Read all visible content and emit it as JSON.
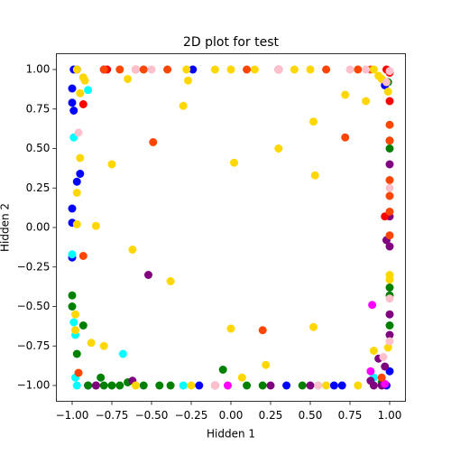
{
  "chart_data": {
    "type": "scatter",
    "title": "2D plot for test",
    "x_label": "Hidden 1",
    "y_label": "Hidden 2",
    "xlim": [
      -1.1,
      1.1
    ],
    "ylim": [
      -1.1,
      1.1
    ],
    "xticks": [
      {
        "value": -1,
        "label": "−1.00"
      },
      {
        "value": -0.75,
        "label": "−0.75"
      },
      {
        "value": -0.5,
        "label": "−0.50"
      },
      {
        "value": -0.25,
        "label": "−0.25"
      },
      {
        "value": 0,
        "label": "0.00"
      },
      {
        "value": 0.25,
        "label": "0.25"
      },
      {
        "value": 0.5,
        "label": "0.50"
      },
      {
        "value": 0.75,
        "label": "0.75"
      },
      {
        "value": 1,
        "label": "1.00"
      }
    ],
    "yticks": [
      {
        "value": -1,
        "label": "−1.00"
      },
      {
        "value": -0.75,
        "label": "−0.75"
      },
      {
        "value": -0.5,
        "label": "−0.50"
      },
      {
        "value": -0.25,
        "label": "−0.25"
      },
      {
        "value": 0,
        "label": "0.00"
      },
      {
        "value": 0.25,
        "label": "0.25"
      },
      {
        "value": 0.5,
        "label": "0.50"
      },
      {
        "value": 0.75,
        "label": "0.75"
      },
      {
        "value": 1,
        "label": "1.00"
      }
    ],
    "grid": false,
    "series": [
      {
        "color": "#0000ff",
        "x": [
          -0.99,
          -0.97,
          -1,
          -1,
          -0.99,
          -0.95,
          -0.97,
          -1,
          -1,
          -1,
          -0.8,
          -0.24,
          0.3,
          -0.9,
          -0.2,
          0.35,
          0.65,
          0.7,
          0.98,
          1,
          0.97
        ],
        "y": [
          1,
          1,
          0.88,
          0.79,
          0.74,
          0.34,
          0.29,
          0.12,
          0.03,
          -0.19,
          1,
          1,
          1,
          -1,
          -1,
          -1,
          -1,
          -1,
          -1,
          -0.91,
          0.9
        ]
      },
      {
        "color": "#00ffff",
        "x": [
          -0.99,
          -0.9,
          -1,
          -0.99,
          -0.98,
          -0.68,
          -0.98,
          -0.97,
          -0.3,
          0.55,
          0.6,
          0.9
        ],
        "y": [
          0.57,
          0.87,
          -0.17,
          -0.6,
          -0.68,
          -0.8,
          -0.95,
          -1,
          -1,
          -1,
          -1,
          -0.95
        ]
      },
      {
        "color": "#008000",
        "x": [
          -1,
          -1,
          -0.93,
          -0.97,
          -0.9,
          -0.85,
          -0.8,
          -0.75,
          -0.7,
          -0.55,
          -0.45,
          -0.38,
          -0.05,
          0.1,
          0.2,
          0.45,
          0.95,
          1,
          1,
          1,
          1,
          1,
          0.99,
          -0.82,
          -0.65
        ],
        "y": [
          -0.43,
          -0.5,
          -0.62,
          -0.8,
          -1,
          -1,
          -1,
          -1,
          -1,
          -1,
          -1,
          -1,
          -0.9,
          -1,
          -1,
          -1,
          -0.98,
          -0.62,
          -0.43,
          -0.38,
          0.55,
          0.5,
          0.92,
          -0.95,
          -0.98
        ]
      },
      {
        "color": "#800080",
        "x": [
          -0.52,
          -0.85,
          -0.62,
          -0.1,
          0.25,
          0.5,
          0.88,
          0.93,
          0.97,
          1,
          1,
          1,
          1,
          0.98,
          1,
          0.9,
          0.95
        ],
        "y": [
          -0.3,
          -1,
          -0.97,
          -1,
          -1,
          -1,
          -0.97,
          -0.83,
          -0.88,
          -0.68,
          -0.55,
          0.4,
          0.07,
          -0.08,
          -0.12,
          -1,
          -1
        ]
      },
      {
        "color": "#ff00ff",
        "x": [
          0.89,
          -0.02,
          0.88,
          0.97
        ],
        "y": [
          -0.49,
          -1,
          -0.91,
          -0.99
        ]
      },
      {
        "color": "#ff0000",
        "x": [
          -0.93,
          -0.78,
          0.98,
          1,
          0.98,
          1,
          0.97,
          -0.6
        ],
        "y": [
          0.78,
          1,
          1,
          0.98,
          0.92,
          0.8,
          0.07,
          1
        ]
      },
      {
        "color": "#ff4500",
        "x": [
          -0.49,
          -0.93,
          0.72,
          0.2,
          -0.8,
          -0.7,
          -0.55,
          -0.4,
          0.1,
          0.3,
          0.6,
          0.8,
          0.88,
          1,
          1,
          1,
          1,
          1,
          1,
          -0.96,
          0.95
        ],
        "y": [
          0.54,
          -0.18,
          0.57,
          -0.65,
          1,
          1,
          1,
          1,
          1,
          1,
          1,
          1,
          1,
          0.65,
          0.55,
          0.3,
          0.2,
          0.1,
          -0.05,
          -0.92,
          -0.95
        ]
      },
      {
        "color": "#ffd700",
        "x": [
          -0.97,
          -0.93,
          -0.95,
          -0.92,
          -0.95,
          -0.97,
          -0.97,
          -0.85,
          -0.75,
          -0.62,
          -0.38,
          -0.3,
          -0.27,
          -0.28,
          0.02,
          0.3,
          0.52,
          0.53,
          0.52,
          0,
          0.22,
          0.07,
          -0.65,
          0.72,
          0.85,
          0.93,
          0.99,
          1,
          1,
          0.99,
          0.9,
          -0.88,
          -0.8,
          -0.98,
          -0.98,
          -0.6,
          -0.25,
          0.6,
          0.8,
          0,
          -0.1,
          0.15,
          0.4,
          0.5,
          0.9,
          0.95
        ],
        "y": [
          1,
          0.95,
          0.85,
          0.93,
          0.44,
          0.22,
          0.02,
          0.01,
          0.4,
          -0.14,
          -0.34,
          0.77,
          0.93,
          1,
          0.41,
          0.5,
          0.67,
          0.33,
          -0.63,
          -0.64,
          -0.87,
          -0.95,
          0.94,
          0.84,
          0.8,
          0.96,
          0.86,
          -0.3,
          -0.33,
          -0.76,
          -0.78,
          -0.73,
          -0.75,
          -0.55,
          -0.65,
          -1,
          -1,
          -1,
          -1,
          1,
          1,
          1,
          1,
          1,
          1,
          0.94
        ]
      },
      {
        "color": "#ffc0cb",
        "x": [
          -0.96,
          -0.6,
          -0.5,
          0.3,
          0.75,
          0.85,
          1,
          0.98,
          1,
          1,
          1,
          0.96,
          -0.1,
          0.55
        ],
        "y": [
          0.6,
          1,
          1,
          1,
          1,
          1,
          0.99,
          0.92,
          0.25,
          -0.45,
          -0.72,
          -0.82,
          -1,
          -1
        ]
      }
    ]
  }
}
